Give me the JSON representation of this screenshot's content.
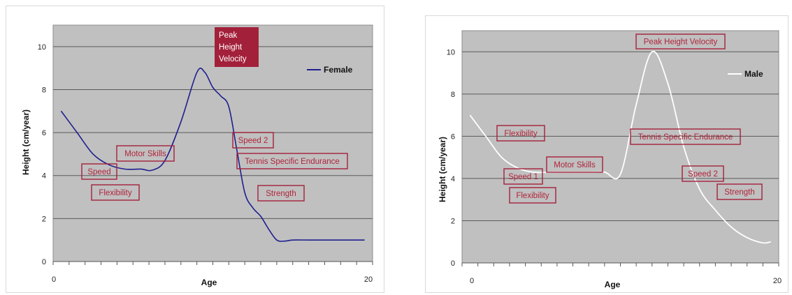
{
  "chart_data": [
    {
      "type": "line",
      "xlabel": "Age",
      "ylabel": "Height (cm/year)",
      "xlim": [
        0,
        20
      ],
      "ylim": [
        0,
        11
      ],
      "x_tick_labels": [
        "0",
        "20"
      ],
      "y_ticks": [
        0,
        2,
        4,
        6,
        8,
        10
      ],
      "grid": true,
      "legend_position": "top-right",
      "plot_bg": "#c0c0c0",
      "series": [
        {
          "name": "Female",
          "color": "#1f1f8f",
          "points": [
            [
              0.5,
              7.0
            ],
            [
              1.5,
              6.0
            ],
            [
              2.5,
              5.0
            ],
            [
              3.5,
              4.5
            ],
            [
              4.5,
              4.3
            ],
            [
              5.5,
              4.3
            ],
            [
              6.2,
              4.25
            ],
            [
              7.0,
              4.7
            ],
            [
              8.0,
              6.5
            ],
            [
              9.0,
              8.8
            ],
            [
              9.5,
              8.8
            ],
            [
              10.0,
              8.1
            ],
            [
              10.5,
              7.7
            ],
            [
              11.0,
              7.2
            ],
            [
              11.5,
              5.2
            ],
            [
              12.0,
              3.2
            ],
            [
              12.5,
              2.5
            ],
            [
              13.0,
              2.1
            ],
            [
              13.5,
              1.5
            ],
            [
              14.0,
              1.0
            ],
            [
              14.5,
              0.95
            ],
            [
              15.0,
              1.0
            ],
            [
              16.0,
              1.0
            ],
            [
              17.0,
              1.0
            ],
            [
              18.0,
              1.0
            ],
            [
              19.5,
              1.0
            ]
          ]
        }
      ],
      "annotations": [
        {
          "text": "Peak Height Velocity",
          "lines": [
            "Peak",
            "Height",
            "Velocity"
          ],
          "style": "filled"
        },
        {
          "text": "Motor Skills",
          "style": "outline"
        },
        {
          "text": "Speed",
          "style": "outline"
        },
        {
          "text": "Flexibility",
          "style": "outline"
        },
        {
          "text": "Speed 2",
          "style": "outline"
        },
        {
          "text": "Tennis Specific Endurance",
          "style": "outline"
        },
        {
          "text": "Strength",
          "style": "outline"
        }
      ]
    },
    {
      "type": "line",
      "xlabel": "Age",
      "ylabel": "Height (cm/year)",
      "xlim": [
        0,
        20
      ],
      "ylim": [
        0,
        11
      ],
      "x_tick_labels": [
        "0",
        "20"
      ],
      "y_ticks": [
        0,
        2,
        4,
        6,
        8,
        10
      ],
      "grid": true,
      "legend_position": "top-right",
      "plot_bg": "#c0c0c0",
      "series": [
        {
          "name": "Male",
          "color": "#ffffff",
          "points": [
            [
              0.5,
              7.0
            ],
            [
              1.5,
              6.0
            ],
            [
              2.5,
              5.0
            ],
            [
              3.5,
              4.5
            ],
            [
              4.5,
              4.3
            ],
            [
              6.0,
              4.3
            ],
            [
              8.0,
              4.3
            ],
            [
              9.0,
              4.3
            ],
            [
              10.0,
              4.2
            ],
            [
              11.0,
              7.5
            ],
            [
              12.0,
              10.0
            ],
            [
              13.0,
              8.5
            ],
            [
              14.0,
              5.5
            ],
            [
              15.0,
              3.5
            ],
            [
              16.0,
              2.5
            ],
            [
              17.0,
              1.7
            ],
            [
              18.0,
              1.2
            ],
            [
              19.0,
              0.95
            ],
            [
              19.5,
              1.0
            ]
          ]
        }
      ],
      "annotations": [
        {
          "text": "Peak Height Velocity",
          "style": "outline"
        },
        {
          "text": "Flexibility",
          "style": "outline"
        },
        {
          "text": "Tennis Specific Endurance",
          "style": "outline"
        },
        {
          "text": "Motor Skills",
          "style": "outline"
        },
        {
          "text": "Speed 1",
          "style": "outline"
        },
        {
          "text": "Speed 2",
          "style": "outline"
        },
        {
          "text": "Flexibility",
          "style": "outline"
        },
        {
          "text": "Strength",
          "style": "outline"
        }
      ]
    }
  ]
}
